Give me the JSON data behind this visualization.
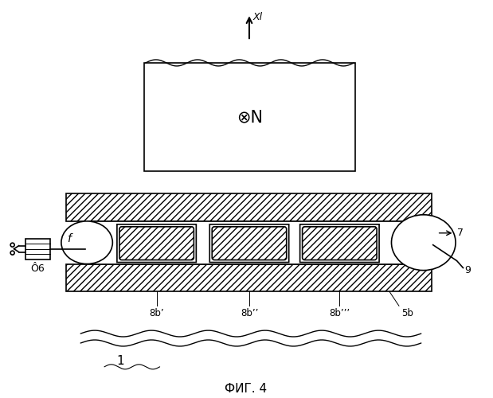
{
  "background_color": "#ffffff",
  "title": "ФИГ. 4",
  "title_fontsize": 11,
  "fig_width": 6.19,
  "fig_height": 5.0,
  "dpi": 100,
  "arrow_label": "Xl",
  "magnet_label": "⊗N",
  "label_6": "Ô6",
  "label_f": "f",
  "label_7": "7",
  "label_9": "9",
  "label_1": "1",
  "label_5b": "5b",
  "label_8b1": "8b’",
  "label_8b2": "8b’’",
  "label_8b3": "8b’’’",
  "line_color": "#000000",
  "hatch_pattern": "////"
}
